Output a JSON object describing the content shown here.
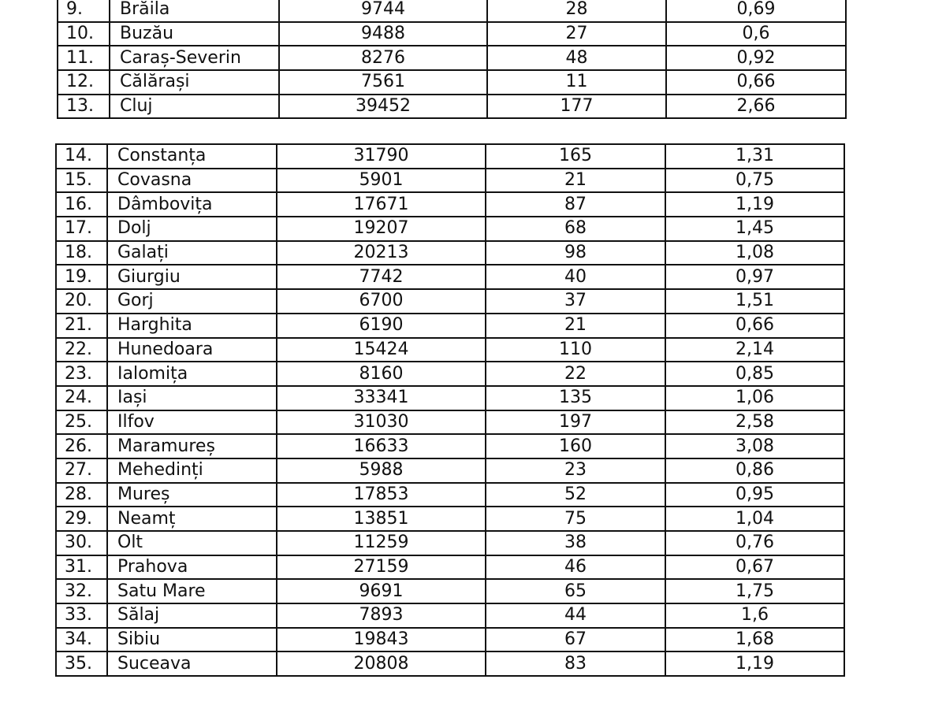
{
  "table_part1": {
    "rows": [
      {
        "nr": "9.",
        "county": "Brăila",
        "v1": "9744",
        "v2": "28",
        "v3": "0,69"
      },
      {
        "nr": "10.",
        "county": "Buzău",
        "v1": "9488",
        "v2": "27",
        "v3": "0,6"
      },
      {
        "nr": "11.",
        "county": "Caraș-Severin",
        "v1": "8276",
        "v2": "48",
        "v3": "0,92"
      },
      {
        "nr": "12.",
        "county": "Călărași",
        "v1": "7561",
        "v2": "11",
        "v3": "0,66"
      },
      {
        "nr": "13.",
        "county": "Cluj",
        "v1": "39452",
        "v2": "177",
        "v3": "2,66"
      }
    ]
  },
  "table_part2": {
    "rows": [
      {
        "nr": "14.",
        "county": "Constanța",
        "v1": "31790",
        "v2": "165",
        "v3": "1,31"
      },
      {
        "nr": "15.",
        "county": "Covasna",
        "v1": "5901",
        "v2": "21",
        "v3": "0,75"
      },
      {
        "nr": "16.",
        "county": "Dâmbovița",
        "v1": "17671",
        "v2": "87",
        "v3": "1,19"
      },
      {
        "nr": "17.",
        "county": "Dolj",
        "v1": "19207",
        "v2": "68",
        "v3": "1,45"
      },
      {
        "nr": "18.",
        "county": "Galați",
        "v1": "20213",
        "v2": "98",
        "v3": "1,08"
      },
      {
        "nr": "19.",
        "county": "Giurgiu",
        "v1": "7742",
        "v2": "40",
        "v3": "0,97"
      },
      {
        "nr": "20.",
        "county": "Gorj",
        "v1": "6700",
        "v2": "37",
        "v3": "1,51"
      },
      {
        "nr": "21.",
        "county": "Harghita",
        "v1": "6190",
        "v2": "21",
        "v3": "0,66"
      },
      {
        "nr": "22.",
        "county": "Hunedoara",
        "v1": "15424",
        "v2": "110",
        "v3": "2,14"
      },
      {
        "nr": "23.",
        "county": "Ialomița",
        "v1": "8160",
        "v2": "22",
        "v3": "0,85"
      },
      {
        "nr": "24.",
        "county": "Iași",
        "v1": "33341",
        "v2": "135",
        "v3": "1,06"
      },
      {
        "nr": "25.",
        "county": "Ilfov",
        "v1": "31030",
        "v2": "197",
        "v3": "2,58"
      },
      {
        "nr": "26.",
        "county": "Maramureș",
        "v1": "16633",
        "v2": "160",
        "v3": "3,08"
      },
      {
        "nr": "27.",
        "county": "Mehedinți",
        "v1": "5988",
        "v2": "23",
        "v3": "0,86"
      },
      {
        "nr": "28.",
        "county": "Mureș",
        "v1": "17853",
        "v2": "52",
        "v3": "0,95"
      },
      {
        "nr": "29.",
        "county": "Neamț",
        "v1": "13851",
        "v2": "75",
        "v3": "1,04"
      },
      {
        "nr": "30.",
        "county": "Olt",
        "v1": "11259",
        "v2": "38",
        "v3": "0,76"
      },
      {
        "nr": "31.",
        "county": "Prahova",
        "v1": "27159",
        "v2": "46",
        "v3": "0,67"
      },
      {
        "nr": "32.",
        "county": "Satu Mare",
        "v1": "9691",
        "v2": "65",
        "v3": "1,75"
      },
      {
        "nr": "33.",
        "county": "Sălaj",
        "v1": "7893",
        "v2": "44",
        "v3": "1,6"
      },
      {
        "nr": "34.",
        "county": "Sibiu",
        "v1": "19843",
        "v2": "67",
        "v3": "1,68"
      },
      {
        "nr": "35.",
        "county": "Suceava",
        "v1": "20808",
        "v2": "83",
        "v3": "1,19"
      }
    ]
  }
}
